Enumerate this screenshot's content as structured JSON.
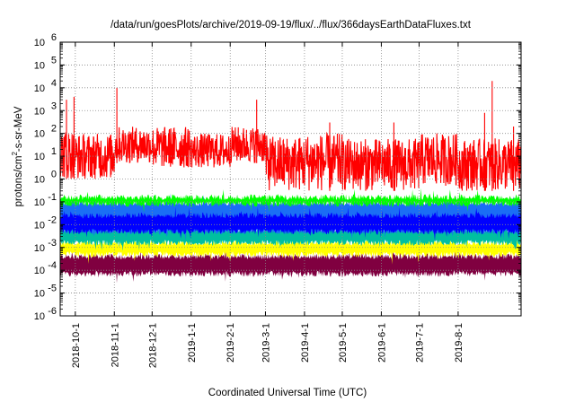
{
  "chart_data": {
    "type": "line",
    "title": "/data/run/goesPlots/archive/2019-09-19/flux/../flux/366daysEarthDataFluxes.txt",
    "xlabel": "Coordinated Universal Time (UTC)",
    "ylabel_main": "protons/cm",
    "ylabel_sup": "2",
    "ylabel_rest": "-s-sr-MeV",
    "yscale": "log",
    "ylim": [
      1e-06,
      1000000.0
    ],
    "xlim": [
      "2018-09-19",
      "2019-09-19"
    ],
    "grid": true,
    "y_ticks": [
      {
        "value": 1e-06,
        "base": "10",
        "exp": "-6"
      },
      {
        "value": 1e-05,
        "base": "10",
        "exp": "-5"
      },
      {
        "value": 0.0001,
        "base": "10",
        "exp": "-4"
      },
      {
        "value": 0.001,
        "base": "10",
        "exp": "-3"
      },
      {
        "value": 0.01,
        "base": "10",
        "exp": "-2"
      },
      {
        "value": 0.1,
        "base": "10",
        "exp": "-1"
      },
      {
        "value": 1,
        "base": "10",
        "exp": "0"
      },
      {
        "value": 10,
        "base": "10",
        "exp": "1"
      },
      {
        "value": 100,
        "base": "10",
        "exp": "2"
      },
      {
        "value": 1000,
        "base": "10",
        "exp": "3"
      },
      {
        "value": 10000,
        "base": "10",
        "exp": "4"
      },
      {
        "value": 100000,
        "base": "10",
        "exp": "5"
      },
      {
        "value": 1000000,
        "base": "10",
        "exp": "6"
      }
    ],
    "x_ticks": [
      "2018-10-1",
      "2018-11-1",
      "2018-12-1",
      "2019-1-1",
      "2019-2-1",
      "2019-3-1",
      "2019-4-1",
      "2019-5-1",
      "2019-6-1",
      "2019-7-1",
      "2019-8-1"
    ],
    "x_tick_days": [
      12,
      43,
      73,
      104,
      135,
      163,
      194,
      224,
      255,
      285,
      316
    ],
    "total_days": 366,
    "series": [
      {
        "color": "#800040",
        "band": [
          7e-05,
          0.0004
        ]
      },
      {
        "color": "#ffff00",
        "band": [
          0.0005,
          0.0016
        ]
      },
      {
        "color": "#00bfa0",
        "band": [
          0.0016,
          0.006
        ]
      },
      {
        "color": "#1a6ef5",
        "band": [
          0.005,
          0.09
        ]
      },
      {
        "color": "#0000ff",
        "band": [
          0.005,
          0.025
        ]
      },
      {
        "color": "#00ff00",
        "band": [
          0.08,
          0.16
        ]
      },
      {
        "color": "#ff0000",
        "monthly": [
          {
            "month": "2018-10",
            "low": 1,
            "high": 150
          },
          {
            "month": "2018-11",
            "low": 1,
            "high": 100
          },
          {
            "month": "2018-12",
            "low": 5,
            "high": 200
          },
          {
            "month": "2019-01",
            "low": 3,
            "high": 200
          },
          {
            "month": "2019-02",
            "low": 3,
            "high": 100
          },
          {
            "month": "2019-03",
            "low": 5,
            "high": 200
          },
          {
            "month": "2019-04",
            "low": 0.3,
            "high": 80
          },
          {
            "month": "2019-05",
            "low": 0.3,
            "high": 100
          },
          {
            "month": "2019-06",
            "low": 0.3,
            "high": 60
          },
          {
            "month": "2019-07",
            "low": 0.3,
            "high": 60
          },
          {
            "month": "2019-08",
            "low": 0.5,
            "high": 100
          },
          {
            "month": "2019-09",
            "low": 0.3,
            "high": 60
          }
        ],
        "spikes": [
          {
            "day": 5,
            "value": 3000
          },
          {
            "day": 11,
            "value": 4000
          },
          {
            "day": 45,
            "value": 10000
          },
          {
            "day": 156,
            "value": 3000
          },
          {
            "day": 214,
            "value": 300
          },
          {
            "day": 265,
            "value": 300
          },
          {
            "day": 337,
            "value": 800
          },
          {
            "day": 343,
            "value": 20000
          },
          {
            "day": 360,
            "value": 200
          }
        ]
      }
    ]
  }
}
